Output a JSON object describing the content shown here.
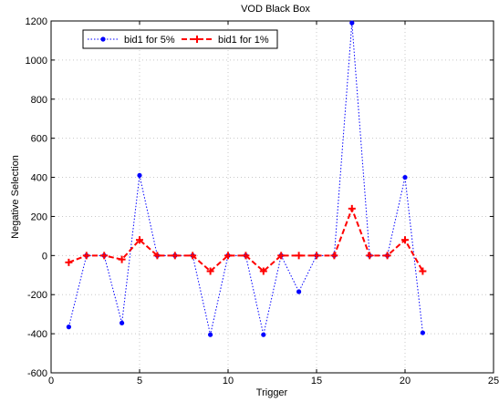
{
  "chart_data": {
    "type": "line",
    "title": "VOD Black Box",
    "xlabel": "Trigger",
    "ylabel": "Negative Selection",
    "xlim": [
      0,
      25
    ],
    "ylim": [
      -600,
      1200
    ],
    "xticks": [
      0,
      5,
      10,
      15,
      20,
      25
    ],
    "yticks": [
      -600,
      -400,
      -200,
      0,
      200,
      400,
      600,
      800,
      1000,
      1200
    ],
    "grid": true,
    "legend_position": "top-left",
    "series": [
      {
        "name": "bid1 for 5%",
        "color": "#0000ff",
        "line_style": "dotted",
        "marker": "dot",
        "x": [
          1,
          2,
          3,
          4,
          5,
          6,
          7,
          8,
          9,
          10,
          11,
          12,
          13,
          14,
          15,
          16,
          17,
          18,
          19,
          20,
          21
        ],
        "y": [
          -365,
          0,
          0,
          -345,
          410,
          0,
          0,
          0,
          -405,
          0,
          0,
          -405,
          0,
          -185,
          0,
          0,
          1190,
          0,
          0,
          400,
          -395
        ]
      },
      {
        "name": "bid1 for 1%",
        "color": "#ff0000",
        "line_style": "dashed",
        "marker": "plus",
        "x": [
          1,
          2,
          3,
          4,
          5,
          6,
          7,
          8,
          9,
          10,
          11,
          12,
          13,
          14,
          15,
          16,
          17,
          18,
          19,
          20,
          21
        ],
        "y": [
          -35,
          0,
          0,
          -20,
          80,
          0,
          0,
          0,
          -80,
          0,
          0,
          -80,
          0,
          0,
          0,
          0,
          240,
          0,
          0,
          80,
          -80
        ]
      }
    ]
  }
}
